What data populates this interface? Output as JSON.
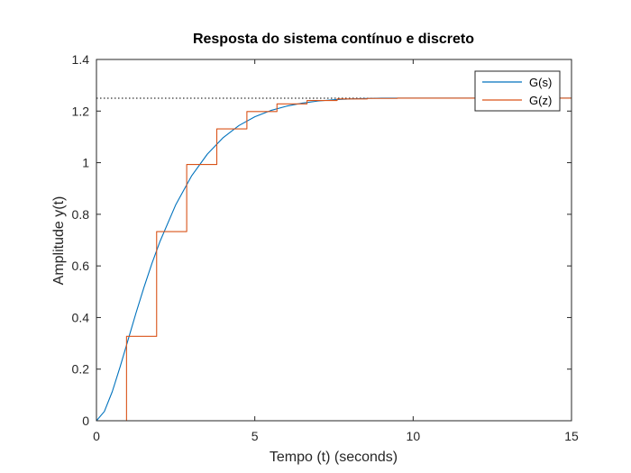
{
  "chart_data": {
    "type": "line",
    "title": "Resposta do sistema contínuo e discreto",
    "xlabel": "Tempo (t) (seconds)",
    "ylabel": "Amplitude y(t)",
    "xlim": [
      0,
      15
    ],
    "ylim": [
      0,
      1.4
    ],
    "xticks": [
      0,
      5,
      10,
      15
    ],
    "yticks": [
      0,
      0.2,
      0.4,
      0.6,
      0.8,
      1,
      1.2,
      1.4
    ],
    "xtick_labels": [
      "0",
      "5",
      "10",
      "15"
    ],
    "ytick_labels": [
      "0",
      "0.2",
      "0.4",
      "0.6",
      "0.8",
      "1",
      "1.2",
      "1.4"
    ],
    "grid": false,
    "legend_position": "top-right",
    "steady_state_reference": 1.25,
    "series": [
      {
        "name": "G(s)",
        "style": "continuous",
        "color": "#0072BD",
        "x": [
          0,
          0.25,
          0.5,
          0.75,
          1,
          1.25,
          1.5,
          1.75,
          2,
          2.5,
          3,
          3.5,
          4,
          4.5,
          5,
          5.5,
          6,
          6.5,
          7,
          7.5,
          8,
          8.5,
          9,
          10,
          11,
          12,
          13,
          14,
          15
        ],
        "y": [
          0,
          0.036,
          0.113,
          0.21,
          0.314,
          0.418,
          0.517,
          0.609,
          0.693,
          0.836,
          0.948,
          1.033,
          1.097,
          1.144,
          1.178,
          1.202,
          1.219,
          1.231,
          1.239,
          1.244,
          1.247,
          1.249,
          1.25,
          1.25,
          1.25,
          1.25,
          1.25,
          1.25,
          1.25
        ]
      },
      {
        "name": "G(z)",
        "style": "stairs",
        "color": "#D95319",
        "x": [
          0,
          0.95,
          1.9,
          2.85,
          3.8,
          4.75,
          5.7,
          6.65,
          7.6,
          8.55,
          9.5,
          10.45,
          11.4,
          12.35,
          13.3,
          14.25
        ],
        "y": [
          0,
          0.327,
          0.733,
          0.993,
          1.131,
          1.198,
          1.228,
          1.241,
          1.247,
          1.249,
          1.25,
          1.25,
          1.25,
          1.25,
          1.25,
          1.25
        ]
      }
    ]
  }
}
